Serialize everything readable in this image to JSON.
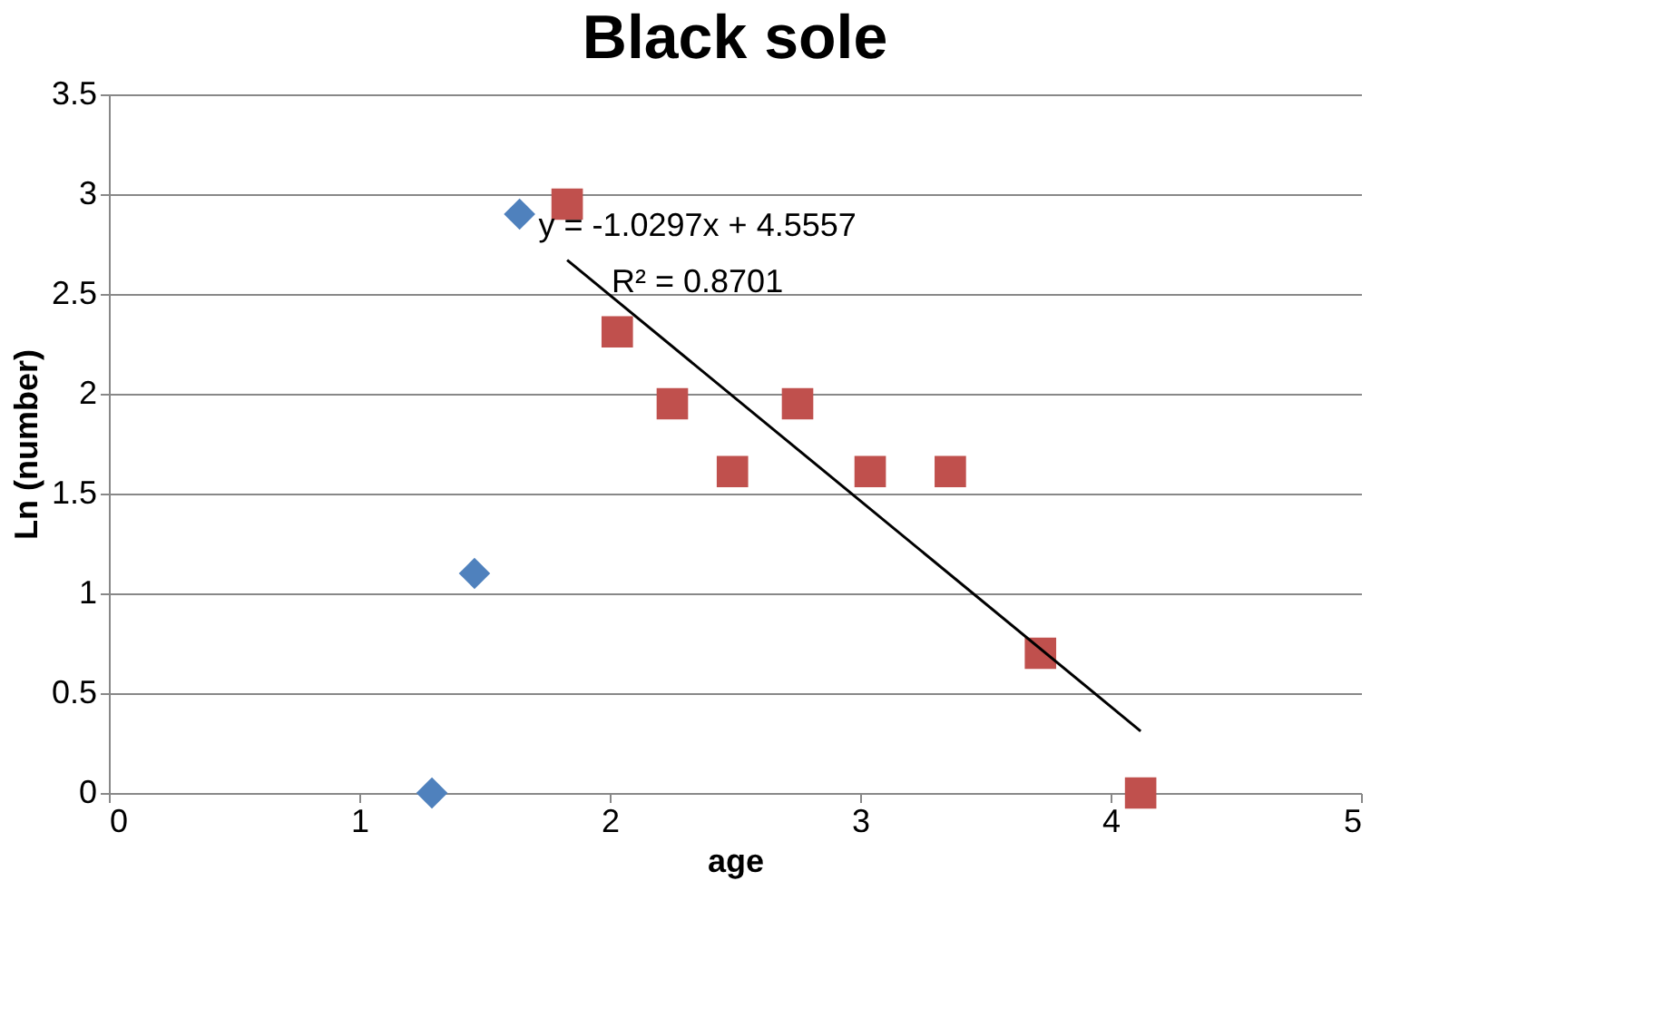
{
  "chart_data": {
    "type": "scatter",
    "title": "Black sole",
    "xlabel": "age",
    "ylabel": "Ln (number)",
    "xlim": [
      0,
      5
    ],
    "xticks": [
      0,
      1,
      2,
      3,
      4,
      5
    ],
    "ylim": [
      0,
      3.5
    ],
    "yticks": [
      0,
      0.5,
      1,
      1.5,
      2,
      2.5,
      3,
      3.5
    ],
    "grid": "y",
    "series": [
      {
        "marker": "diamond",
        "color": "#4f81bd",
        "x": [
          1.29,
          1.46,
          1.64
        ],
        "values": [
          0,
          1.1,
          2.9
        ]
      },
      {
        "marker": "square",
        "color": "#c0504d",
        "x": [
          1.83,
          2.03,
          2.25,
          2.49,
          2.75,
          3.04,
          3.36,
          3.72,
          4.12
        ],
        "values": [
          2.95,
          2.31,
          1.95,
          1.61,
          1.95,
          1.61,
          1.61,
          0.7,
          0
        ]
      },
      {
        "type": "line",
        "marker": "none",
        "color": "#000000",
        "x": [
          1.83,
          4.12
        ],
        "values": [
          2.67,
          0.31
        ]
      }
    ],
    "annotations": [
      "y = -1.0297x + 4.5557",
      "R² = 0.8701"
    ]
  }
}
